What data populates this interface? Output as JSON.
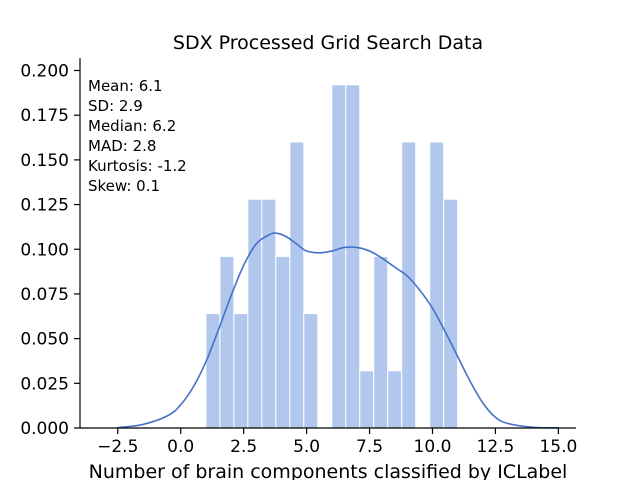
{
  "chart_data": {
    "type": "bar",
    "title": "SDX Processed Grid Search Data",
    "xlabel": "Number of brain components classified by ICLabel",
    "ylabel": "",
    "xlim": [
      -4.0,
      15.7
    ],
    "ylim": [
      0.0,
      0.207
    ],
    "xticks": [
      -2.5,
      0.0,
      2.5,
      5.0,
      7.5,
      10.0,
      12.5,
      15.0
    ],
    "xtick_labels": [
      "−2.5",
      "0.0",
      "2.5",
      "5.0",
      "7.5",
      "10.0",
      "12.5",
      "15.0"
    ],
    "yticks": [
      0.0,
      0.025,
      0.05,
      0.075,
      0.1,
      0.125,
      0.15,
      0.175,
      0.2
    ],
    "ytick_labels": [
      "0.000",
      "0.025",
      "0.050",
      "0.075",
      "0.100",
      "0.125",
      "0.150",
      "0.175",
      "0.200"
    ],
    "histogram": {
      "color": "#b1c7ee",
      "edge_color": "#ffffff",
      "bin_width": 0.556,
      "bin_starts": [
        1.0,
        1.556,
        2.111,
        2.667,
        3.222,
        3.778,
        4.333,
        4.889,
        6.0,
        6.556,
        7.111,
        7.667,
        8.222,
        8.778,
        9.889,
        10.444
      ],
      "values": [
        0.064,
        0.096,
        0.064,
        0.128,
        0.128,
        0.096,
        0.16,
        0.064,
        0.192,
        0.192,
        0.032,
        0.096,
        0.032,
        0.16,
        0.16,
        0.128
      ]
    },
    "kde": {
      "color": "#4472c4",
      "x": [
        -2.5,
        -1.5,
        -0.5,
        0.0,
        0.5,
        1.0,
        1.5,
        2.0,
        2.5,
        3.0,
        3.5,
        3.8,
        4.2,
        4.6,
        5.0,
        5.5,
        6.0,
        6.5,
        7.0,
        7.5,
        8.0,
        8.5,
        9.0,
        9.5,
        10.0,
        10.5,
        11.0,
        11.5,
        12.0,
        12.5,
        13.0,
        14.0,
        15.0
      ],
      "y": [
        0.0002,
        0.002,
        0.007,
        0.013,
        0.023,
        0.037,
        0.055,
        0.074,
        0.091,
        0.103,
        0.108,
        0.109,
        0.107,
        0.103,
        0.099,
        0.098,
        0.099,
        0.101,
        0.101,
        0.099,
        0.095,
        0.09,
        0.085,
        0.077,
        0.067,
        0.054,
        0.04,
        0.026,
        0.014,
        0.006,
        0.0025,
        0.0004,
        0.0001
      ]
    },
    "stats_annotation": [
      "Mean: 6.1",
      "SD: 2.9",
      "Median: 6.2",
      "MAD: 2.8",
      "Kurtosis: -1.2",
      "Skew: 0.1"
    ],
    "grid": false,
    "legend": "none"
  }
}
